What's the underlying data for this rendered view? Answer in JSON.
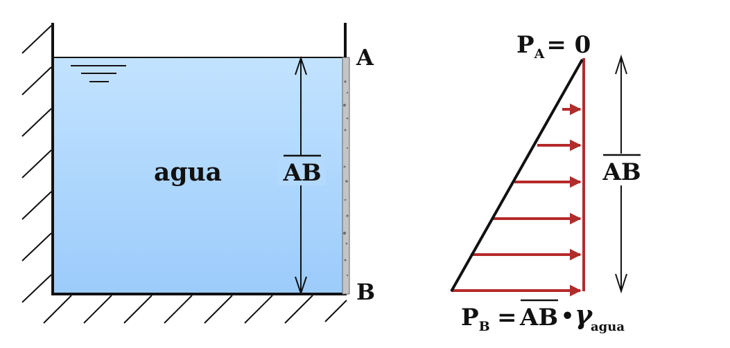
{
  "tank": {
    "liquid_label": "agua",
    "height_label": "AB",
    "point_top": "A",
    "point_bottom": "B",
    "water_top_color": "#c2e3ff",
    "water_bottom_color": "#9ccbfb"
  },
  "pressure_diagram": {
    "top_pressure_symbol": "P",
    "top_pressure_subscript": "A",
    "top_pressure_value": "= 0",
    "bottom_pressure_symbol": "P",
    "bottom_pressure_subscript": "B",
    "bottom_pressure_equals": "=",
    "bottom_pressure_length": "AB",
    "bottom_pressure_dot": "•",
    "bottom_pressure_gamma": "γ",
    "bottom_pressure_gamma_subscript": "agua",
    "height_label": "AB",
    "arrow_color": "#b52a2a"
  }
}
